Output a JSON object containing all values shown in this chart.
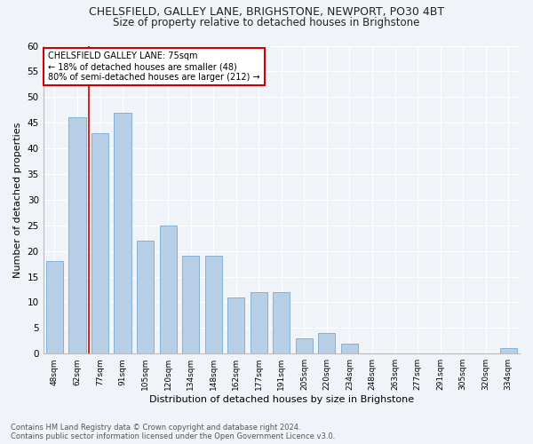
{
  "title1": "CHELSFIELD, GALLEY LANE, BRIGHSTONE, NEWPORT, PO30 4BT",
  "title2": "Size of property relative to detached houses in Brighstone",
  "xlabel": "Distribution of detached houses by size in Brighstone",
  "ylabel": "Number of detached properties",
  "categories": [
    "48sqm",
    "62sqm",
    "77sqm",
    "91sqm",
    "105sqm",
    "120sqm",
    "134sqm",
    "148sqm",
    "162sqm",
    "177sqm",
    "191sqm",
    "205sqm",
    "220sqm",
    "234sqm",
    "248sqm",
    "263sqm",
    "277sqm",
    "291sqm",
    "305sqm",
    "320sqm",
    "334sqm"
  ],
  "values": [
    18,
    46,
    43,
    47,
    22,
    25,
    19,
    19,
    11,
    12,
    12,
    3,
    4,
    2,
    0,
    0,
    0,
    0,
    0,
    0,
    1
  ],
  "bar_color": "#b8cfe8",
  "bar_edge_color": "#7aaad0",
  "highlight_label": "CHELSFIELD GALLEY LANE: 75sqm",
  "annotation_line1": "← 18% of detached houses are smaller (48)",
  "annotation_line2": "80% of semi-detached houses are larger (212) →",
  "vline_color": "#cc0000",
  "box_color": "#cc0000",
  "ylim": [
    0,
    60
  ],
  "yticks": [
    0,
    5,
    10,
    15,
    20,
    25,
    30,
    35,
    40,
    45,
    50,
    55,
    60
  ],
  "footnote1": "Contains HM Land Registry data © Crown copyright and database right 2024.",
  "footnote2": "Contains public sector information licensed under the Open Government Licence v3.0.",
  "background_color": "#f0f4f8",
  "plot_bg_color": "#f0f4f8",
  "grid_color": "#ffffff",
  "title1_fontsize": 9,
  "title2_fontsize": 8.5,
  "xlabel_fontsize": 8,
  "ylabel_fontsize": 8,
  "bar_width": 0.75,
  "vline_x_idx": 1.5
}
